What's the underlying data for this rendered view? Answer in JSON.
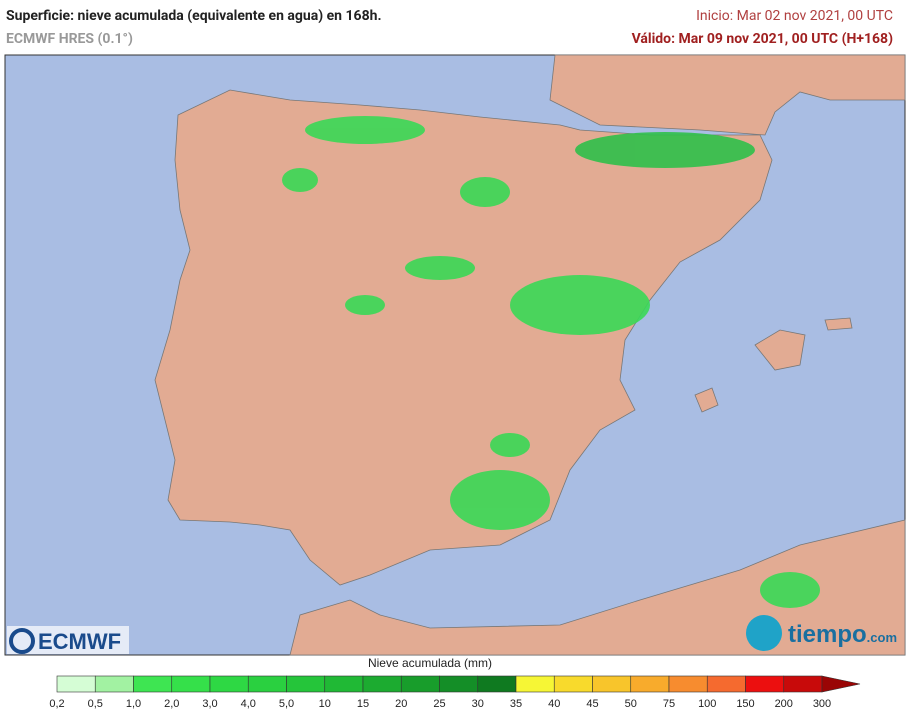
{
  "header": {
    "title": "Superficie: nieve acumulada (equivalente en agua) en 168h.",
    "model": "ECMWF HRES (0.1°)",
    "init": "Inicio: Mar 02 nov 2021, 00 UTC",
    "valid": "Válido: Mar 09 nov 2021, 00 UTC (H+168)"
  },
  "logos": {
    "left": "ECMWF",
    "right": "tiempo",
    "right_suffix": ".com"
  },
  "legend": {
    "title": "Nieve acumulada (mm)",
    "ticks": [
      "0,2",
      "0,5",
      "1,0",
      "2,0",
      "3,0",
      "4,0",
      "5,0",
      "10",
      "15",
      "20",
      "25",
      "30",
      "35",
      "40",
      "45",
      "50",
      "75",
      "100",
      "150",
      "200",
      "300"
    ],
    "colors": [
      "#d5fdd5",
      "#a2f2a2",
      "#3ee552",
      "#35e04a",
      "#2ed844",
      "#2ad040",
      "#25c53a",
      "#20b935",
      "#1cab30",
      "#189d2b",
      "#148e27",
      "#0f7a20",
      "#f6f635",
      "#f8da2c",
      "#f8c52b",
      "#f8ab2c",
      "#f78c2f",
      "#f56a2f",
      "#ec0f0f",
      "#c80a0a",
      "#9a0505"
    ]
  }
}
